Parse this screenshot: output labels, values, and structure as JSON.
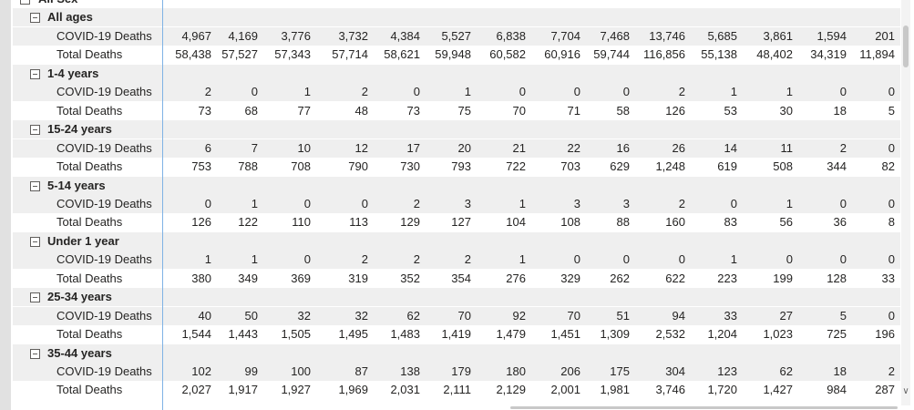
{
  "matrix": {
    "top_label": "All Sex",
    "groups": [
      {
        "label": "All ages",
        "rows": [
          {
            "label": "COVID-19 Deaths",
            "values": [
              "4,967",
              "4,169",
              "3,776",
              "3,732",
              "4,384",
              "5,527",
              "6,838",
              "7,704",
              "7,468",
              "13,746",
              "5,685",
              "3,861",
              "1,594",
              "201"
            ]
          },
          {
            "label": "Total Deaths",
            "values": [
              "58,438",
              "57,527",
              "57,343",
              "57,714",
              "58,621",
              "59,948",
              "60,582",
              "60,916",
              "59,744",
              "116,856",
              "55,138",
              "48,402",
              "34,319",
              "11,894"
            ]
          }
        ]
      },
      {
        "label": "1-4 years",
        "rows": [
          {
            "label": "COVID-19 Deaths",
            "values": [
              "2",
              "0",
              "1",
              "2",
              "0",
              "1",
              "0",
              "0",
              "0",
              "2",
              "1",
              "1",
              "0",
              "0"
            ]
          },
          {
            "label": "Total Deaths",
            "values": [
              "73",
              "68",
              "77",
              "48",
              "73",
              "75",
              "70",
              "71",
              "58",
              "126",
              "53",
              "30",
              "18",
              "5"
            ]
          }
        ]
      },
      {
        "label": "15-24 years",
        "rows": [
          {
            "label": "COVID-19 Deaths",
            "values": [
              "6",
              "7",
              "10",
              "12",
              "17",
              "20",
              "21",
              "22",
              "16",
              "26",
              "14",
              "11",
              "2",
              "0"
            ]
          },
          {
            "label": "Total Deaths",
            "values": [
              "753",
              "788",
              "708",
              "790",
              "730",
              "793",
              "722",
              "703",
              "629",
              "1,248",
              "619",
              "508",
              "344",
              "82"
            ]
          }
        ]
      },
      {
        "label": "5-14 years",
        "rows": [
          {
            "label": "COVID-19 Deaths",
            "values": [
              "0",
              "1",
              "0",
              "0",
              "2",
              "3",
              "1",
              "3",
              "3",
              "2",
              "0",
              "1",
              "0",
              "0"
            ]
          },
          {
            "label": "Total Deaths",
            "values": [
              "126",
              "122",
              "110",
              "113",
              "129",
              "127",
              "104",
              "108",
              "88",
              "160",
              "83",
              "56",
              "36",
              "8"
            ]
          }
        ]
      },
      {
        "label": "Under 1 year",
        "rows": [
          {
            "label": "COVID-19 Deaths",
            "values": [
              "1",
              "1",
              "0",
              "2",
              "2",
              "2",
              "1",
              "0",
              "0",
              "0",
              "1",
              "0",
              "0",
              "0"
            ]
          },
          {
            "label": "Total Deaths",
            "values": [
              "380",
              "349",
              "369",
              "319",
              "352",
              "354",
              "276",
              "329",
              "262",
              "622",
              "223",
              "199",
              "128",
              "33"
            ]
          }
        ]
      },
      {
        "label": "25-34 years",
        "rows": [
          {
            "label": "COVID-19 Deaths",
            "values": [
              "40",
              "50",
              "32",
              "32",
              "62",
              "70",
              "92",
              "70",
              "51",
              "94",
              "33",
              "27",
              "5",
              "0"
            ]
          },
          {
            "label": "Total Deaths",
            "values": [
              "1,544",
              "1,443",
              "1,505",
              "1,495",
              "1,483",
              "1,419",
              "1,479",
              "1,451",
              "1,309",
              "2,532",
              "1,204",
              "1,023",
              "725",
              "196"
            ]
          }
        ]
      },
      {
        "label": "35-44 years",
        "rows": [
          {
            "label": "COVID-19 Deaths",
            "values": [
              "102",
              "99",
              "100",
              "87",
              "138",
              "179",
              "180",
              "206",
              "175",
              "304",
              "123",
              "62",
              "18",
              "2"
            ]
          },
          {
            "label": "Total Deaths",
            "values": [
              "2,027",
              "1,917",
              "1,927",
              "1,969",
              "2,031",
              "2,111",
              "2,129",
              "2,001",
              "1,981",
              "3,746",
              "1,720",
              "1,427",
              "984",
              "287"
            ]
          }
        ]
      }
    ]
  }
}
